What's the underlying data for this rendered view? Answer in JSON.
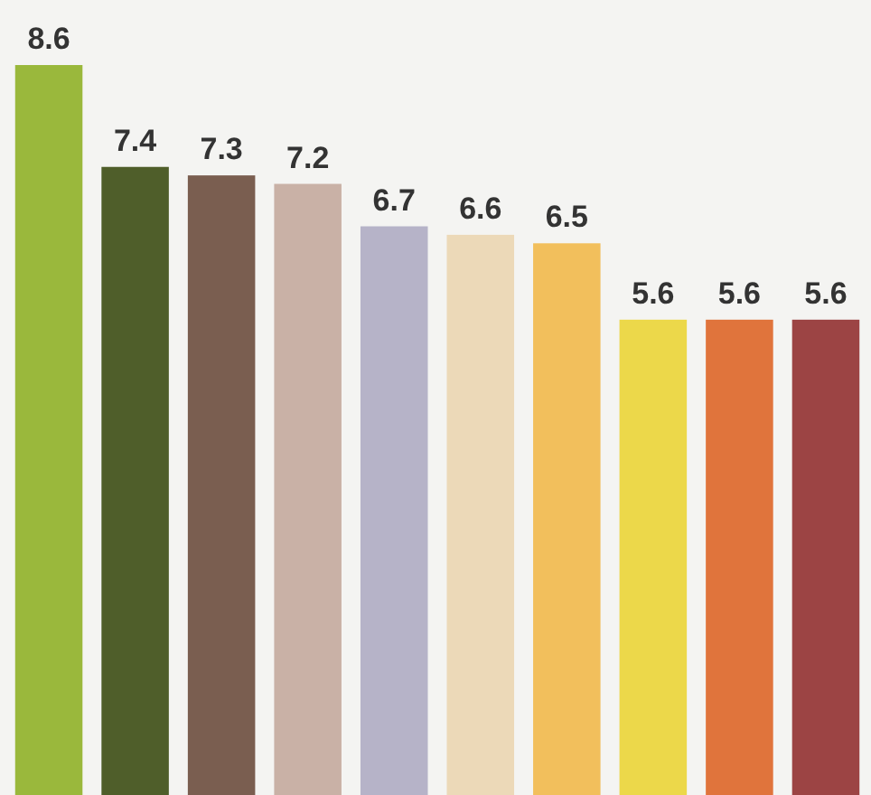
{
  "chart_data": {
    "type": "bar",
    "categories": [
      null,
      null,
      null,
      null,
      null,
      null,
      null,
      null,
      null,
      null
    ],
    "values": [
      8.6,
      7.4,
      7.3,
      7.2,
      6.7,
      6.6,
      6.5,
      5.6,
      5.6,
      5.6
    ],
    "colors": [
      "#9ab83c",
      "#4f5e2a",
      "#7a5e50",
      "#c9b1a6",
      "#b6b3c8",
      "#ecd9b8",
      "#f2bf5c",
      "#ecd84a",
      "#e0743c",
      "#9c4444"
    ],
    "data_labels": true
  }
}
